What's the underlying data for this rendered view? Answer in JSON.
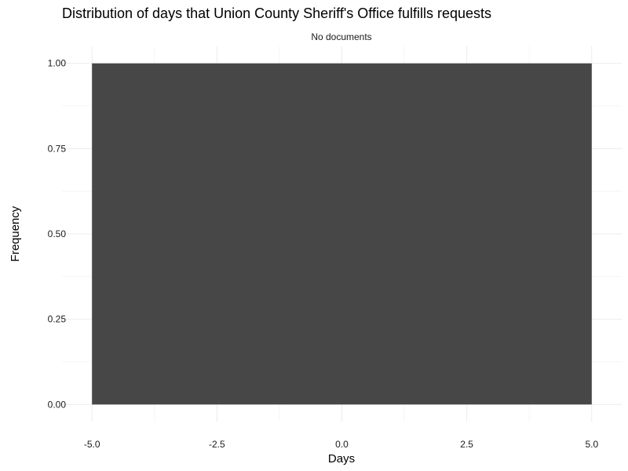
{
  "chart_data": {
    "type": "bar",
    "title": "Distribution of days that Union County Sheriff's Office fulfills requests",
    "subtitle": "No documents",
    "xlabel": "Days",
    "ylabel": "Frequency",
    "xlim": [
      -5.6,
      5.6
    ],
    "ylim": [
      -0.05,
      1.05
    ],
    "x_ticks": [
      -5.0,
      -2.5,
      0.0,
      2.5,
      5.0
    ],
    "x_tick_labels": [
      "-5.0",
      "-2.5",
      "0.0",
      "2.5",
      "5.0"
    ],
    "y_ticks": [
      0.0,
      0.25,
      0.5,
      0.75,
      1.0
    ],
    "y_tick_labels": [
      "0.00",
      "0.25",
      "0.50",
      "0.75",
      "1.00"
    ],
    "bins": [
      {
        "x_start": -5.0,
        "x_end": 5.0,
        "count": 1.0
      }
    ],
    "grid": true,
    "colors": {
      "bar": "#474747",
      "grid_major": "#ebebeb",
      "grid_minor": "#f5f5f5",
      "text": "#000000",
      "tick_text": "#1a1a1a"
    }
  }
}
